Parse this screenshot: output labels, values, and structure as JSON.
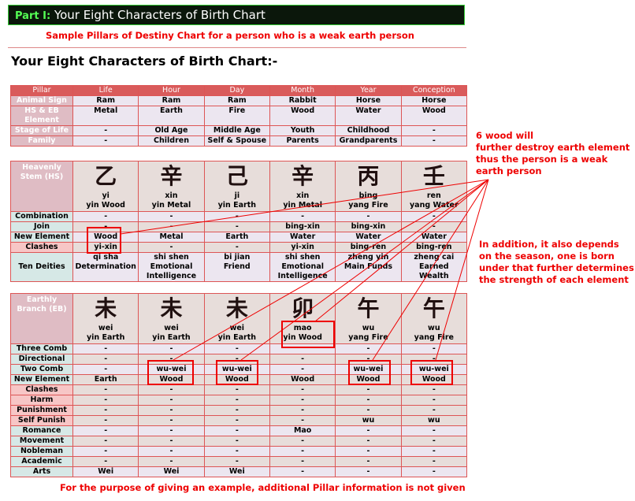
{
  "header": {
    "part": "Part I:",
    "title": " Your Eight Characters of Birth Chart"
  },
  "subtitle": "Sample Pillars of Destiny Chart for a person who is a weak earth person",
  "heading": "Your Eight Characters of Birth Chart:-",
  "table1": {
    "columns": [
      "Pillar",
      "Life",
      "Hour",
      "Day",
      "Month",
      "Year",
      "Conception"
    ],
    "rows": [
      {
        "label": "Animal Sign",
        "cells": [
          "Ram",
          "Ram",
          "Ram",
          "Rabbit",
          "Horse",
          "Horse"
        ]
      },
      {
        "label": "HS & EB Element",
        "cells": [
          "Metal",
          "Earth",
          "Fire",
          "Wood",
          "Water",
          "Wood"
        ]
      },
      {
        "label": "Stage of Life",
        "cells": [
          "-",
          "Old Age",
          "Middle Age",
          "Youth",
          "Childhood",
          "-"
        ]
      },
      {
        "label": "Family",
        "cells": [
          "-",
          "Children",
          "Self & Spouse",
          "Parents",
          "Grandparents",
          "-"
        ]
      }
    ]
  },
  "table2": {
    "label": "Heavenly Stem (HS)",
    "stems": [
      {
        "char": "乙",
        "pinyin": "yi",
        "element": "yin Wood"
      },
      {
        "char": "辛",
        "pinyin": "xin",
        "element": "yin Metal"
      },
      {
        "char": "己",
        "pinyin": "ji",
        "element": "yin Earth"
      },
      {
        "char": "辛",
        "pinyin": "xin",
        "element": "yin Metal"
      },
      {
        "char": "丙",
        "pinyin": "bing",
        "element": "yang Fire"
      },
      {
        "char": "壬",
        "pinyin": "ren",
        "element": "yang Water"
      }
    ],
    "rows": [
      {
        "label": "Combination",
        "style": "t",
        "cells": [
          "-",
          "-",
          "-",
          "-",
          "-",
          "-"
        ]
      },
      {
        "label": "Join",
        "style": "t",
        "cells": [
          "-",
          "-",
          "-",
          "bing-xin",
          "bing-xin",
          "-"
        ]
      },
      {
        "label": "New Element",
        "style": "t",
        "cells": [
          "Wood",
          "Metal",
          "Earth",
          "Water",
          "Water",
          "Water"
        ]
      },
      {
        "label": "Clashes",
        "style": "c",
        "cells": [
          "yi-xin",
          "-",
          "-",
          "yi-xin",
          "bing-ren",
          "bing-ren"
        ]
      },
      {
        "label": "Ten Deities",
        "style": "t",
        "cells": [
          "qi sha\nDetermination",
          "shi shen\nEmotional\nIntelligence",
          "bi jian\nFriend",
          "shi shen\nEmotional\nIntelligence",
          "zheng yin\nMain Funds",
          "zheng cai\nEarned\nWealth"
        ]
      }
    ]
  },
  "table3": {
    "label": "Earthly Branch (EB)",
    "stems": [
      {
        "char": "未",
        "pinyin": "wei",
        "element": "yin Earth"
      },
      {
        "char": "未",
        "pinyin": "wei",
        "element": "yin Earth"
      },
      {
        "char": "未",
        "pinyin": "wei",
        "element": "yin Earth"
      },
      {
        "char": "卯",
        "pinyin": "mao",
        "element": "yin Wood"
      },
      {
        "char": "午",
        "pinyin": "wu",
        "element": "yang Fire"
      },
      {
        "char": "午",
        "pinyin": "wu",
        "element": "yang Fire"
      }
    ],
    "rows": [
      {
        "label": "Three Comb",
        "style": "t",
        "cells": [
          "-",
          "-",
          "-",
          "",
          "-",
          "-"
        ]
      },
      {
        "label": "Directional",
        "style": "t",
        "cells": [
          "-",
          "-",
          "-",
          "-",
          "-",
          "-"
        ]
      },
      {
        "label": "Two Comb",
        "style": "t",
        "cells": [
          "-",
          "wu-wei",
          "wu-wei",
          "-",
          "wu-wei",
          "wu-wei"
        ]
      },
      {
        "label": "New Element",
        "style": "t",
        "cells": [
          "Earth",
          "Wood",
          "Wood",
          "Wood",
          "Wood",
          "Wood"
        ]
      },
      {
        "label": "Clashes",
        "style": "c",
        "cells": [
          "-",
          "-",
          "-",
          "-",
          "-",
          "-"
        ]
      },
      {
        "label": "Harm",
        "style": "c",
        "cells": [
          "-",
          "-",
          "-",
          "-",
          "-",
          "-"
        ]
      },
      {
        "label": "Punishment",
        "style": "c",
        "cells": [
          "-",
          "-",
          "-",
          "-",
          "-",
          "-"
        ]
      },
      {
        "label": "Self Punish",
        "style": "c",
        "cells": [
          "-",
          "-",
          "-",
          "-",
          "wu",
          "wu"
        ]
      },
      {
        "label": "Romance",
        "style": "t",
        "cells": [
          "-",
          "-",
          "-",
          "Mao",
          "-",
          "-"
        ]
      },
      {
        "label": "Movement",
        "style": "t",
        "cells": [
          "-",
          "-",
          "-",
          "-",
          "-",
          "-"
        ]
      },
      {
        "label": "Nobleman",
        "style": "t",
        "cells": [
          "-",
          "-",
          "-",
          "-",
          "-",
          "-"
        ]
      },
      {
        "label": "Academic",
        "style": "t",
        "cells": [
          "-",
          "-",
          "-",
          "-",
          "-",
          "-"
        ]
      },
      {
        "label": "Arts",
        "style": "t",
        "cells": [
          "Wei",
          "Wei",
          "Wei",
          "-",
          "-",
          "-"
        ]
      }
    ]
  },
  "notes": {
    "wood": "6 wood will\nfurther destroy earth element\nthus the person is a weak\nearth person",
    "season": "In addition, it also depends\non the season, one is born\nunder that further determines\nthe strength of each element",
    "footer": "For the purpose of giving an example, additional Pillar information is not given"
  },
  "colors": {
    "header": "#d95b5b",
    "annotation": "#ee0000"
  }
}
